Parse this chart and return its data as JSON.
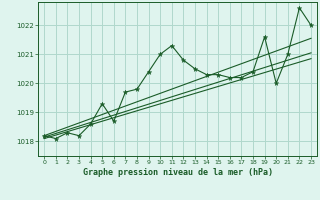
{
  "title": "Graphe pression niveau de la mer (hPa)",
  "bg_color": "#dff4ee",
  "grid_color": "#b0d8cc",
  "line_color": "#1a5c28",
  "xlim": [
    -0.5,
    23.5
  ],
  "ylim": [
    1017.5,
    1022.8
  ],
  "yticks": [
    1018,
    1019,
    1020,
    1021,
    1022
  ],
  "xticks": [
    0,
    1,
    2,
    3,
    4,
    5,
    6,
    7,
    8,
    9,
    10,
    11,
    12,
    13,
    14,
    15,
    16,
    17,
    18,
    19,
    20,
    21,
    22,
    23
  ],
  "pressure": [
    1018.2,
    1018.1,
    1018.3,
    1018.2,
    1018.6,
    1019.3,
    1018.7,
    1019.7,
    1019.8,
    1020.4,
    1021.0,
    1021.3,
    1020.8,
    1020.5,
    1020.3,
    1020.3,
    1020.2,
    1020.2,
    1020.4,
    1021.6,
    1020.0,
    1021.0,
    1022.6,
    1022.0
  ],
  "trend_x0": 0,
  "trend_x1": 23,
  "trend1_y0": 1018.15,
  "trend1_y1": 1021.05,
  "trend2_y0": 1018.2,
  "trend2_y1": 1021.55,
  "trend3_y0": 1018.1,
  "trend3_y1": 1020.85
}
